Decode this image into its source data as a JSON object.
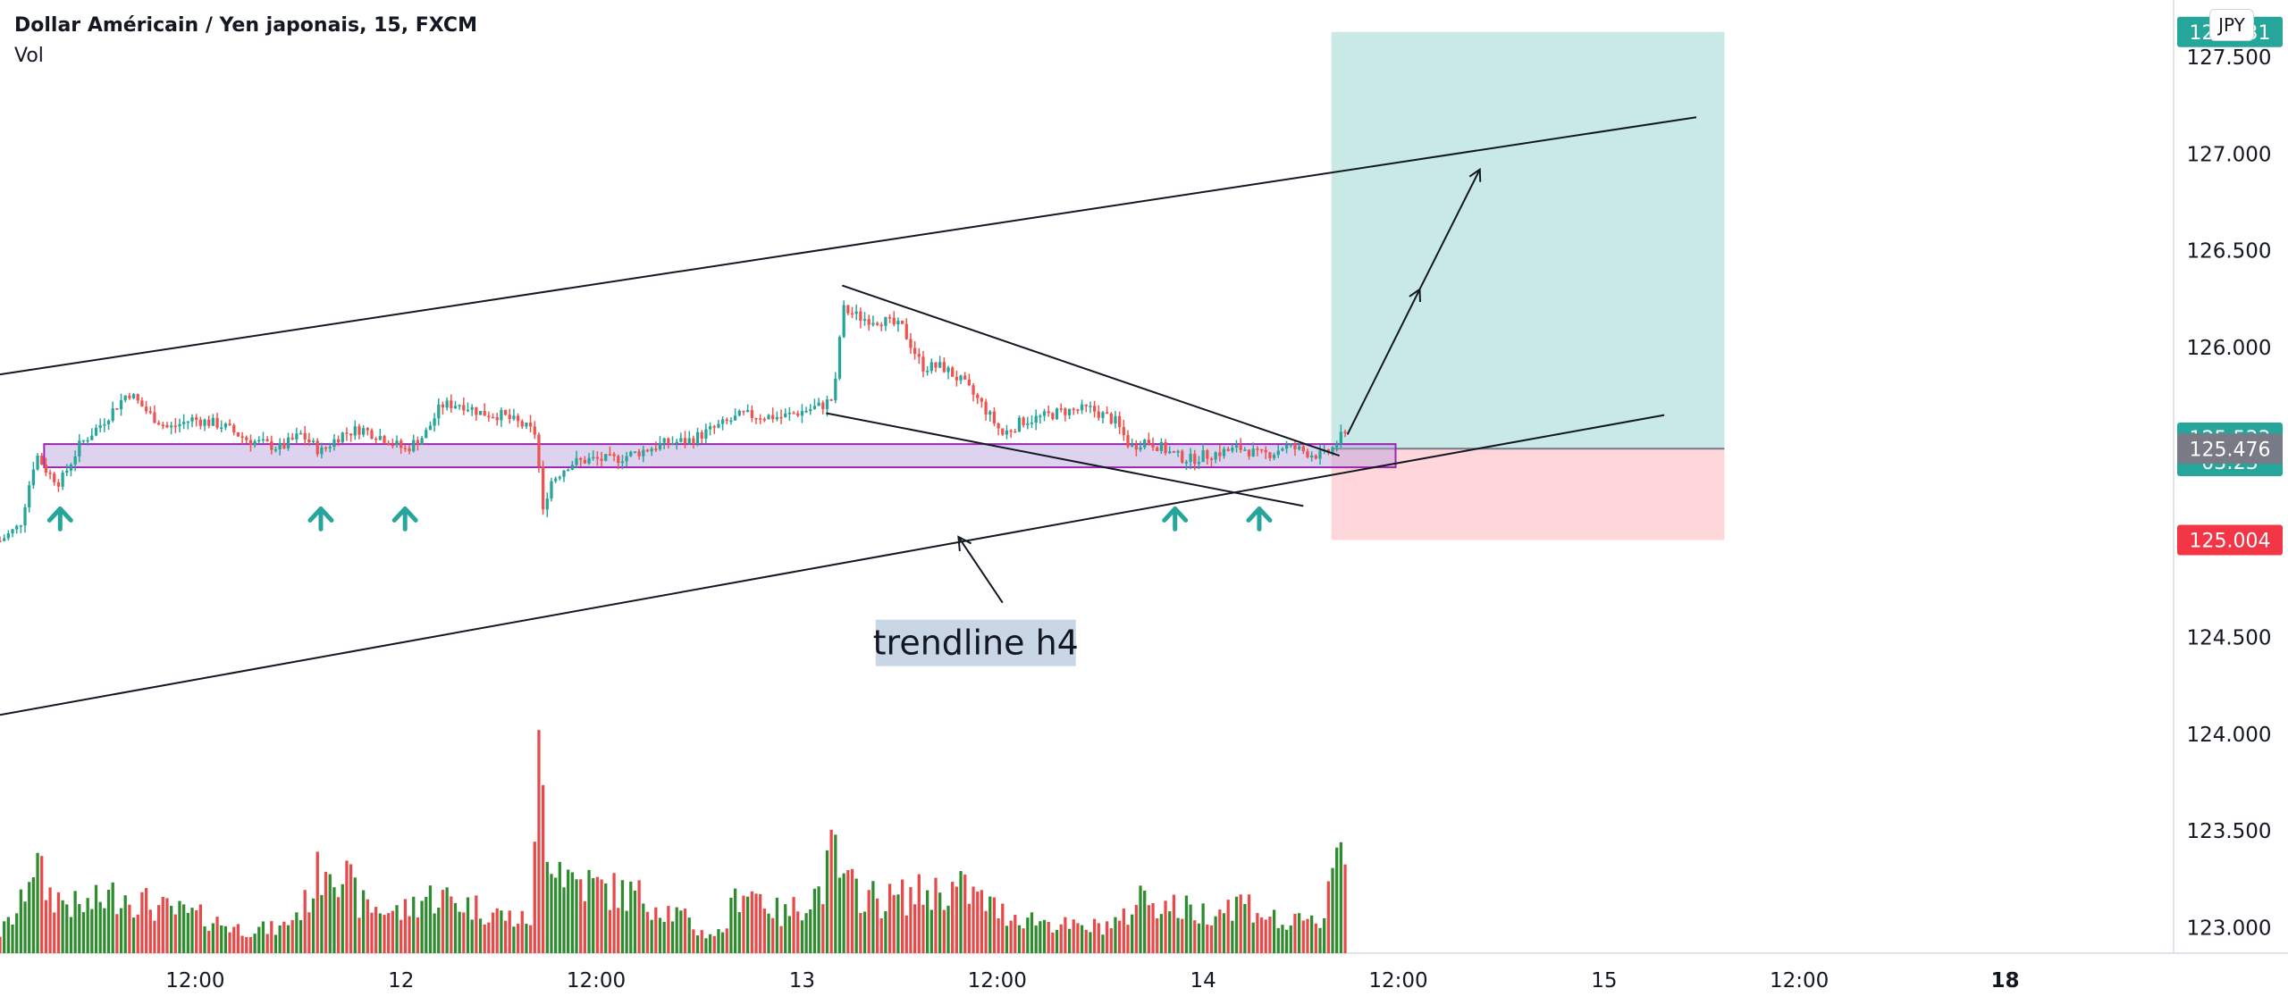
{
  "header": {
    "title": "Dollar Américain / Yen japonais, 15, FXCM",
    "volume_label": "Vol",
    "currency_button": "JPY"
  },
  "price_axis": {
    "ticks": [
      "127.500",
      "127.000",
      "126.500",
      "126.000",
      "124.500",
      "124.000",
      "123.500",
      "123.000"
    ],
    "badges": {
      "target": "127.631",
      "current_price": "125.533",
      "countdown": "03:23",
      "entry": "125.476",
      "stop": "125.004"
    }
  },
  "time_axis": {
    "ticks": [
      "12:00",
      "12",
      "12:00",
      "13",
      "12:00",
      "14",
      "12:00",
      "15",
      "12:00",
      "18"
    ],
    "tick_values": [
      0.5,
      1,
      1.5,
      2,
      2.5,
      3,
      3.5,
      4,
      4.5,
      5
    ]
  },
  "annotation": {
    "text": "trendline h4"
  },
  "colors": {
    "up": "#26a69a",
    "down": "#ef5350",
    "volume_up": "#2e8b2e",
    "volume_down": "#e84a4a",
    "support_zone": "#b39ddb",
    "target_zone": "#b2dfdb",
    "stop_zone": "#ffcdd2",
    "target_badge": "#26a69a",
    "entry_badge": "#787b86",
    "stop_badge": "#f23645"
  },
  "chart_data": {
    "type": "candlestick",
    "symbol": "USDJPY",
    "timeframe": "15",
    "x_unit": "days since start of visible range (day 11 at 0)",
    "price_range": [
      122.9,
      127.75
    ],
    "visible_x_range": [
      0,
      5.42
    ],
    "last_price": 125.533,
    "position": {
      "type": "long",
      "entry": 125.476,
      "target": 127.631,
      "stop": 125.004,
      "start_x": 3.32,
      "end_x": 4.3
    },
    "support_zone": {
      "low": 125.38,
      "high": 125.5,
      "x_start": 0.11,
      "x_end": 3.48
    },
    "trendlines": [
      {
        "name": "channel-upper",
        "x1": 0,
        "y1": 125.86,
        "x2": 4.23,
        "y2": 127.19
      },
      {
        "name": "channel-lower",
        "x1": 0,
        "y1": 124.1,
        "x2": 4.15,
        "y2": 125.65
      },
      {
        "name": "falling-upper",
        "x1": 2.1,
        "y1": 126.32,
        "x2": 3.34,
        "y2": 125.44
      },
      {
        "name": "falling-lower",
        "x1": 2.06,
        "y1": 125.66,
        "x2": 3.25,
        "y2": 125.18
      }
    ],
    "arrows_up_x": [
      0.15,
      0.8,
      1.01,
      2.93,
      3.14
    ],
    "arrows_up_price": 125.18,
    "projection_path": [
      [
        3.36,
        125.55
      ],
      [
        3.54,
        126.3
      ],
      [
        3.69,
        126.92
      ]
    ],
    "annotation_arrow": {
      "from": [
        2.5,
        124.68
      ],
      "to": [
        2.39,
        125.02
      ]
    },
    "series_path": [
      [
        0.0,
        125.0
      ],
      [
        0.05,
        125.08
      ],
      [
        0.09,
        125.45
      ],
      [
        0.12,
        125.35
      ],
      [
        0.15,
        125.3
      ],
      [
        0.2,
        125.5
      ],
      [
        0.25,
        125.6
      ],
      [
        0.3,
        125.72
      ],
      [
        0.32,
        125.77
      ],
      [
        0.37,
        125.66
      ],
      [
        0.42,
        125.58
      ],
      [
        0.48,
        125.63
      ],
      [
        0.55,
        125.6
      ],
      [
        0.62,
        125.52
      ],
      [
        0.7,
        125.48
      ],
      [
        0.75,
        125.55
      ],
      [
        0.8,
        125.46
      ],
      [
        0.85,
        125.55
      ],
      [
        0.9,
        125.58
      ],
      [
        0.96,
        125.53
      ],
      [
        1.01,
        125.47
      ],
      [
        1.06,
        125.55
      ],
      [
        1.1,
        125.7
      ],
      [
        1.15,
        125.71
      ],
      [
        1.2,
        125.66
      ],
      [
        1.25,
        125.65
      ],
      [
        1.3,
        125.6
      ],
      [
        1.34,
        125.55
      ],
      [
        1.35,
        125.1
      ],
      [
        1.37,
        125.3
      ],
      [
        1.42,
        125.4
      ],
      [
        1.47,
        125.42
      ],
      [
        1.53,
        125.42
      ],
      [
        1.58,
        125.45
      ],
      [
        1.65,
        125.5
      ],
      [
        1.72,
        125.52
      ],
      [
        1.8,
        125.6
      ],
      [
        1.85,
        125.65
      ],
      [
        1.95,
        125.64
      ],
      [
        2.05,
        125.7
      ],
      [
        2.08,
        125.74
      ],
      [
        2.1,
        126.2
      ],
      [
        2.15,
        126.15
      ],
      [
        2.2,
        126.14
      ],
      [
        2.25,
        126.1
      ],
      [
        2.3,
        125.9
      ],
      [
        2.35,
        125.9
      ],
      [
        2.4,
        125.82
      ],
      [
        2.45,
        125.7
      ],
      [
        2.5,
        125.55
      ],
      [
        2.55,
        125.62
      ],
      [
        2.6,
        125.64
      ],
      [
        2.65,
        125.67
      ],
      [
        2.72,
        125.68
      ],
      [
        2.78,
        125.62
      ],
      [
        2.82,
        125.48
      ],
      [
        2.85,
        125.52
      ],
      [
        2.88,
        125.5
      ],
      [
        2.93,
        125.44
      ],
      [
        2.97,
        125.42
      ],
      [
        3.0,
        125.44
      ],
      [
        3.05,
        125.46
      ],
      [
        3.1,
        125.48
      ],
      [
        3.14,
        125.44
      ],
      [
        3.18,
        125.46
      ],
      [
        3.2,
        125.49
      ],
      [
        3.24,
        125.47
      ],
      [
        3.27,
        125.45
      ],
      [
        3.3,
        125.44
      ],
      [
        3.32,
        125.47
      ],
      [
        3.34,
        125.53
      ],
      [
        3.36,
        125.55
      ]
    ],
    "volume_profile": [
      [
        0.0,
        0.1
      ],
      [
        0.05,
        0.22
      ],
      [
        0.08,
        0.48
      ],
      [
        0.12,
        0.3
      ],
      [
        0.2,
        0.22
      ],
      [
        0.3,
        0.3
      ],
      [
        0.4,
        0.22
      ],
      [
        0.5,
        0.18
      ],
      [
        0.6,
        0.12
      ],
      [
        0.7,
        0.12
      ],
      [
        0.76,
        0.24
      ],
      [
        0.82,
        0.5
      ],
      [
        0.86,
        0.38
      ],
      [
        0.9,
        0.24
      ],
      [
        1.0,
        0.2
      ],
      [
        1.06,
        0.28
      ],
      [
        1.1,
        0.28
      ],
      [
        1.2,
        0.22
      ],
      [
        1.3,
        0.16
      ],
      [
        1.33,
        0.18
      ],
      [
        1.34,
        1.0
      ],
      [
        1.37,
        0.54
      ],
      [
        1.42,
        0.38
      ],
      [
        1.5,
        0.32
      ],
      [
        1.6,
        0.28
      ],
      [
        1.7,
        0.18
      ],
      [
        1.75,
        0.1
      ],
      [
        1.8,
        0.1
      ],
      [
        1.85,
        0.34
      ],
      [
        1.9,
        0.28
      ],
      [
        1.95,
        0.18
      ],
      [
        2.05,
        0.32
      ],
      [
        2.08,
        0.52
      ],
      [
        2.1,
        0.34
      ],
      [
        2.2,
        0.26
      ],
      [
        2.3,
        0.3
      ],
      [
        2.4,
        0.32
      ],
      [
        2.5,
        0.2
      ],
      [
        2.6,
        0.16
      ],
      [
        2.7,
        0.12
      ],
      [
        2.8,
        0.16
      ],
      [
        2.85,
        0.3
      ],
      [
        2.9,
        0.24
      ],
      [
        3.0,
        0.2
      ],
      [
        3.1,
        0.26
      ],
      [
        3.2,
        0.14
      ],
      [
        3.3,
        0.16
      ],
      [
        3.33,
        0.62
      ],
      [
        3.36,
        0.4
      ]
    ]
  }
}
